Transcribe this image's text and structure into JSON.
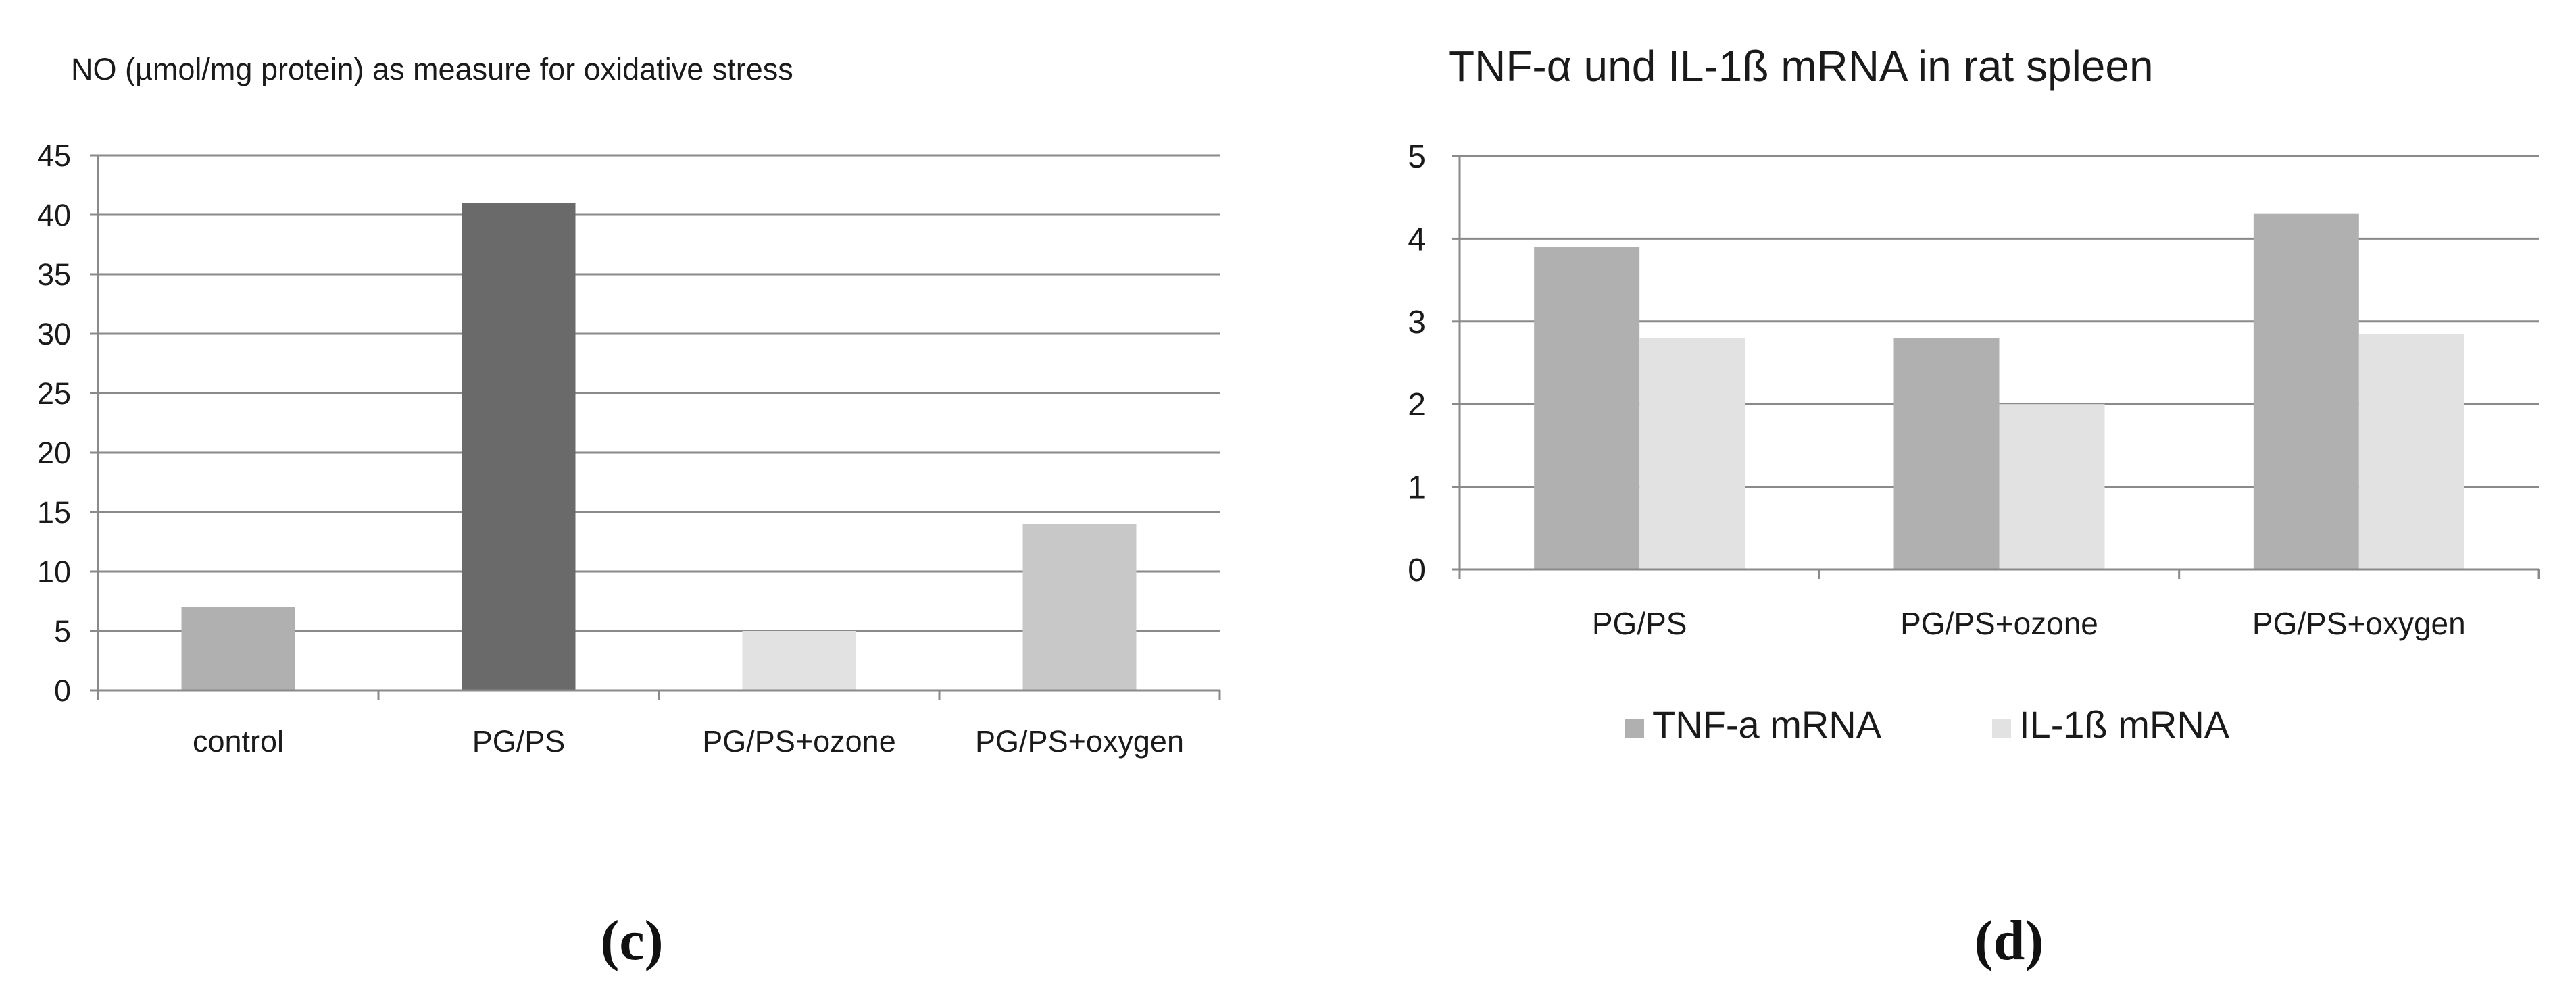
{
  "chart_data": [
    {
      "type": "bar",
      "title": "NO (µmol/mg protein) as measure for oxidative stress",
      "categories": [
        "control",
        "PG/PS",
        "PG/PS+ozone",
        "PG/PS+oxygen"
      ],
      "values": [
        7,
        41,
        5,
        14
      ],
      "bar_colors": [
        "#b0b0b0",
        "#6a6a6a",
        "#e2e2e2",
        "#c8c8c8"
      ],
      "ylim": [
        0,
        45
      ],
      "yticks": [
        "0",
        "5",
        "10",
        "15",
        "20",
        "25",
        "30",
        "35",
        "40",
        "45"
      ],
      "grid": true,
      "panel_label": "(c)"
    },
    {
      "type": "bar",
      "title": "TNF-α und IL-1ß mRNA in rat spleen",
      "categories": [
        "PG/PS",
        "PG/PS+ozone",
        "PG/PS+oxygen"
      ],
      "series": [
        {
          "name": "TNF-a mRNA",
          "values": [
            3.9,
            2.8,
            4.3
          ],
          "color": "#b0b0b0"
        },
        {
          "name": "IL-1ß mRNA",
          "values": [
            2.8,
            2.0,
            2.85
          ],
          "color": "#e2e2e2"
        }
      ],
      "ylim": [
        0,
        5
      ],
      "yticks": [
        "0",
        "1",
        "2",
        "3",
        "4",
        "5"
      ],
      "grid": true,
      "legend": "bottom",
      "panel_label": "(d)"
    }
  ]
}
